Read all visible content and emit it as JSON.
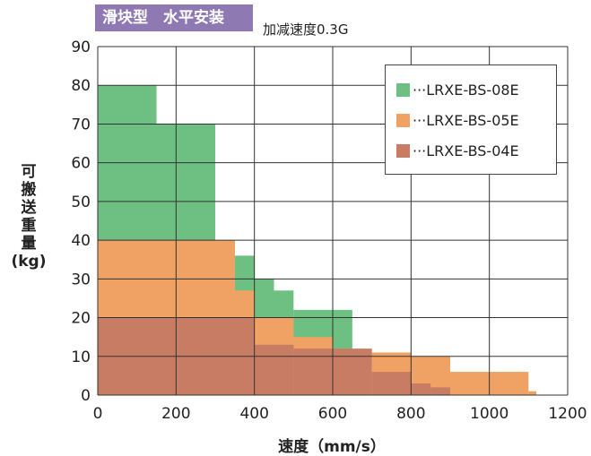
{
  "header": {
    "badge_text": "滑块型　水平安装",
    "acceleration": "加减速度0.3G"
  },
  "chart_data": {
    "type": "area",
    "title": "滑块型　水平安装",
    "subtitle": "加减速度0.3G",
    "xlabel": "速度（mm/s）",
    "ylabel_lines": [
      "可",
      "搬",
      "送",
      "重",
      "量",
      "(kg)"
    ],
    "xlim": [
      0,
      1200
    ],
    "ylim": [
      0,
      90
    ],
    "x_ticks": [
      0,
      200,
      400,
      600,
      800,
      1000,
      1200
    ],
    "y_ticks": [
      0,
      10,
      20,
      30,
      40,
      50,
      60,
      70,
      80,
      90
    ],
    "grid": true,
    "legend_position": "top-right",
    "series": [
      {
        "name": "···LRXE-BS-08E",
        "color": "#6dbf82",
        "steps": [
          {
            "x0": 0,
            "x1": 150,
            "y": 80
          },
          {
            "x0": 150,
            "x1": 300,
            "y": 70
          },
          {
            "x0": 300,
            "x1": 350,
            "y": 40
          },
          {
            "x0": 350,
            "x1": 400,
            "y": 36
          },
          {
            "x0": 400,
            "x1": 450,
            "y": 30
          },
          {
            "x0": 450,
            "x1": 500,
            "y": 27
          },
          {
            "x0": 500,
            "x1": 650,
            "y": 22
          }
        ]
      },
      {
        "name": "···LRXE-BS-05E",
        "color": "#f0a264",
        "steps": [
          {
            "x0": 0,
            "x1": 350,
            "y": 40
          },
          {
            "x0": 350,
            "x1": 400,
            "y": 27
          },
          {
            "x0": 400,
            "x1": 500,
            "y": 20
          },
          {
            "x0": 500,
            "x1": 600,
            "y": 15
          },
          {
            "x0": 600,
            "x1": 650,
            "y": 12
          },
          {
            "x0": 650,
            "x1": 700,
            "y": 11
          },
          {
            "x0": 700,
            "x1": 800,
            "y": 11
          },
          {
            "x0": 800,
            "x1": 900,
            "y": 10
          },
          {
            "x0": 900,
            "x1": 1100,
            "y": 6
          },
          {
            "x0": 1100,
            "x1": 1120,
            "y": 1
          }
        ]
      },
      {
        "name": "···LRXE-BS-04E",
        "color": "#c87c63",
        "steps": [
          {
            "x0": 0,
            "x1": 400,
            "y": 20
          },
          {
            "x0": 400,
            "x1": 500,
            "y": 13
          },
          {
            "x0": 500,
            "x1": 700,
            "y": 12
          },
          {
            "x0": 700,
            "x1": 800,
            "y": 6
          },
          {
            "x0": 800,
            "x1": 850,
            "y": 3
          },
          {
            "x0": 850,
            "x1": 900,
            "y": 2
          }
        ]
      }
    ]
  }
}
